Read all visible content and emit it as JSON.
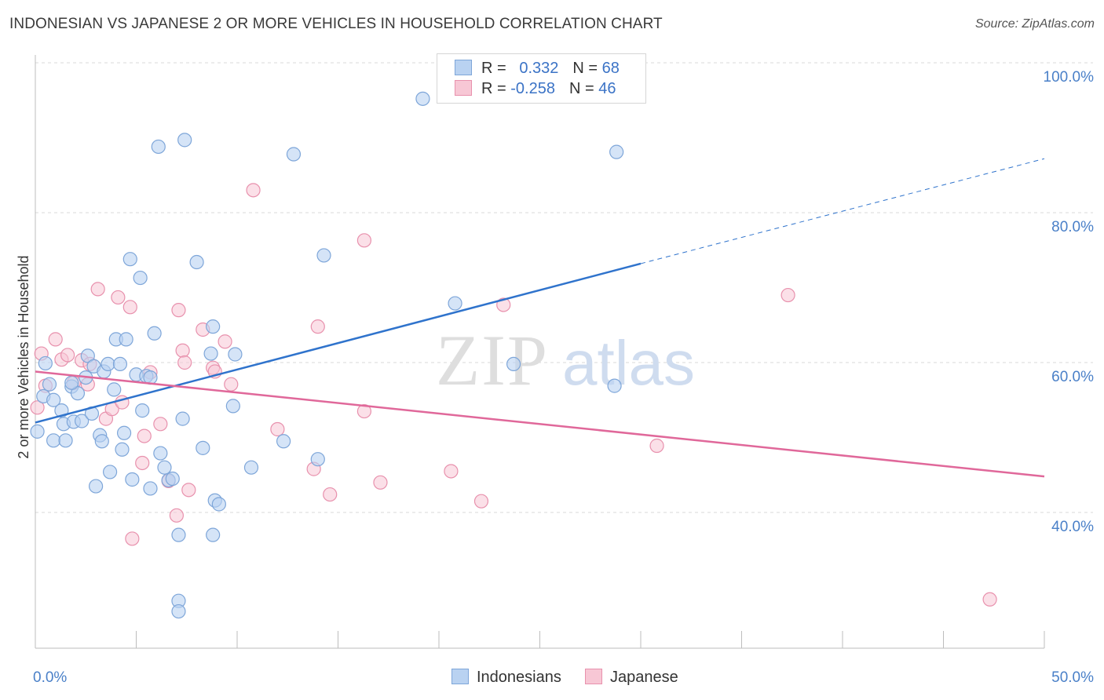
{
  "title": "INDONESIAN VS JAPANESE 2 OR MORE VEHICLES IN HOUSEHOLD CORRELATION CHART",
  "source": "Source: ZipAtlas.com",
  "watermark": {
    "zip": "ZIP",
    "atlas": "atlas"
  },
  "legend": {
    "rows": [
      {
        "r_label": "R =",
        "r_value": "0.332",
        "n_label": "N =",
        "n_value": "68"
      },
      {
        "r_label": "R =",
        "r_value": "-0.258",
        "n_label": "N =",
        "n_value": "46"
      }
    ]
  },
  "bottom_legend": {
    "indonesians": "Indonesians",
    "japanese": "Japanese"
  },
  "colors": {
    "indonesian_fill": "#b9d2f1",
    "indonesian_stroke": "#7ea6d9",
    "indonesian_line": "#2f73cc",
    "japanese_fill": "#f7c7d5",
    "japanese_stroke": "#e891ad",
    "japanese_line": "#e0689a",
    "tick_text": "#4a80c8",
    "grid": "#d9d9d9"
  },
  "chart_data": {
    "type": "scatter",
    "ylabel": "2 or more Vehicles in Household",
    "xlim": [
      0,
      50
    ],
    "ylim": [
      18,
      105
    ],
    "x_tick_labels": {
      "0": "0.0%",
      "50": "50.0%"
    },
    "y_ticks": [
      {
        "value": 100,
        "label": "100.0%"
      },
      {
        "value": 80,
        "label": "80.0%"
      },
      {
        "value": 60,
        "label": "60.0%"
      },
      {
        "value": 40,
        "label": "40.0%"
      }
    ],
    "x_minor_ticks": [
      0,
      5,
      10,
      15,
      20,
      25,
      30,
      35,
      40,
      45,
      50
    ],
    "series": [
      {
        "name": "Indonesians",
        "r": 0.332,
        "n": 68,
        "trend": {
          "x0": 0,
          "y0": 52.0,
          "x1": 30,
          "y1": 73.2,
          "x_dash_end": 50,
          "y_dash_end": 87.2
        },
        "points": [
          [
            0.1,
            50.8
          ],
          [
            0.4,
            55.5
          ],
          [
            0.5,
            59.9
          ],
          [
            0.7,
            57.1
          ],
          [
            0.9,
            55.0
          ],
          [
            0.9,
            49.6
          ],
          [
            1.3,
            53.6
          ],
          [
            1.4,
            51.8
          ],
          [
            1.5,
            49.6
          ],
          [
            1.8,
            56.8
          ],
          [
            1.9,
            52.1
          ],
          [
            2.1,
            55.9
          ],
          [
            2.3,
            52.2
          ],
          [
            2.6,
            60.9
          ],
          [
            2.8,
            53.2
          ],
          [
            2.9,
            59.5
          ],
          [
            3.0,
            43.5
          ],
          [
            3.2,
            50.3
          ],
          [
            3.3,
            49.5
          ],
          [
            3.4,
            58.8
          ],
          [
            3.6,
            59.8
          ],
          [
            3.7,
            45.4
          ],
          [
            3.9,
            56.4
          ],
          [
            4.0,
            63.1
          ],
          [
            4.2,
            59.8
          ],
          [
            4.3,
            48.4
          ],
          [
            4.4,
            50.6
          ],
          [
            4.5,
            63.1
          ],
          [
            4.7,
            73.8
          ],
          [
            4.8,
            44.4
          ],
          [
            5.0,
            58.4
          ],
          [
            5.2,
            71.3
          ],
          [
            5.3,
            53.6
          ],
          [
            5.5,
            58.2
          ],
          [
            5.7,
            43.2
          ],
          [
            5.9,
            63.9
          ],
          [
            6.1,
            88.8
          ],
          [
            6.2,
            47.9
          ],
          [
            6.4,
            46.0
          ],
          [
            6.6,
            44.3
          ],
          [
            7.1,
            28.2
          ],
          [
            7.1,
            26.8
          ],
          [
            7.3,
            52.5
          ],
          [
            7.4,
            89.7
          ],
          [
            8.0,
            73.4
          ],
          [
            8.3,
            48.6
          ],
          [
            8.7,
            61.2
          ],
          [
            8.8,
            64.8
          ],
          [
            8.9,
            41.6
          ],
          [
            9.1,
            41.1
          ],
          [
            9.9,
            61.1
          ],
          [
            9.8,
            54.2
          ],
          [
            10.7,
            46.0
          ],
          [
            12.3,
            49.5
          ],
          [
            12.8,
            87.8
          ],
          [
            14.3,
            74.3
          ],
          [
            14.0,
            47.1
          ],
          [
            19.2,
            95.2
          ],
          [
            20.8,
            67.9
          ],
          [
            23.7,
            59.8
          ],
          [
            28.8,
            88.1
          ],
          [
            28.7,
            56.9
          ],
          [
            8.8,
            37.0
          ],
          [
            7.1,
            37.0
          ],
          [
            2.5,
            58.0
          ],
          [
            1.8,
            57.3
          ],
          [
            6.8,
            44.5
          ],
          [
            5.7,
            58.0
          ]
        ]
      },
      {
        "name": "Japanese",
        "r": -0.258,
        "n": 46,
        "trend": {
          "x0": 0,
          "y0": 58.8,
          "x1": 50,
          "y1": 44.8
        },
        "points": [
          [
            0.1,
            54.0
          ],
          [
            0.3,
            61.2
          ],
          [
            0.5,
            56.9
          ],
          [
            1.0,
            63.1
          ],
          [
            1.3,
            60.4
          ],
          [
            1.6,
            61.0
          ],
          [
            1.9,
            57.3
          ],
          [
            2.3,
            60.3
          ],
          [
            2.6,
            57.1
          ],
          [
            2.7,
            59.8
          ],
          [
            3.1,
            69.8
          ],
          [
            3.5,
            52.5
          ],
          [
            3.8,
            53.8
          ],
          [
            4.1,
            68.7
          ],
          [
            4.3,
            54.7
          ],
          [
            4.7,
            67.4
          ],
          [
            4.8,
            36.5
          ],
          [
            5.3,
            46.6
          ],
          [
            5.4,
            50.2
          ],
          [
            5.7,
            58.7
          ],
          [
            6.2,
            51.8
          ],
          [
            6.6,
            44.2
          ],
          [
            7.0,
            39.6
          ],
          [
            7.1,
            67.0
          ],
          [
            7.3,
            61.6
          ],
          [
            7.6,
            43.0
          ],
          [
            8.3,
            64.4
          ],
          [
            8.8,
            59.3
          ],
          [
            8.9,
            58.8
          ],
          [
            9.4,
            62.8
          ],
          [
            9.7,
            57.1
          ],
          [
            10.8,
            83.0
          ],
          [
            12.0,
            51.1
          ],
          [
            13.8,
            45.8
          ],
          [
            14.0,
            64.8
          ],
          [
            14.6,
            42.4
          ],
          [
            16.3,
            53.5
          ],
          [
            16.3,
            76.3
          ],
          [
            17.1,
            44.0
          ],
          [
            20.6,
            45.5
          ],
          [
            22.1,
            41.5
          ],
          [
            23.2,
            67.7
          ],
          [
            30.8,
            48.9
          ],
          [
            37.3,
            69.0
          ],
          [
            47.3,
            28.4
          ],
          [
            7.4,
            60.0
          ]
        ]
      }
    ]
  }
}
